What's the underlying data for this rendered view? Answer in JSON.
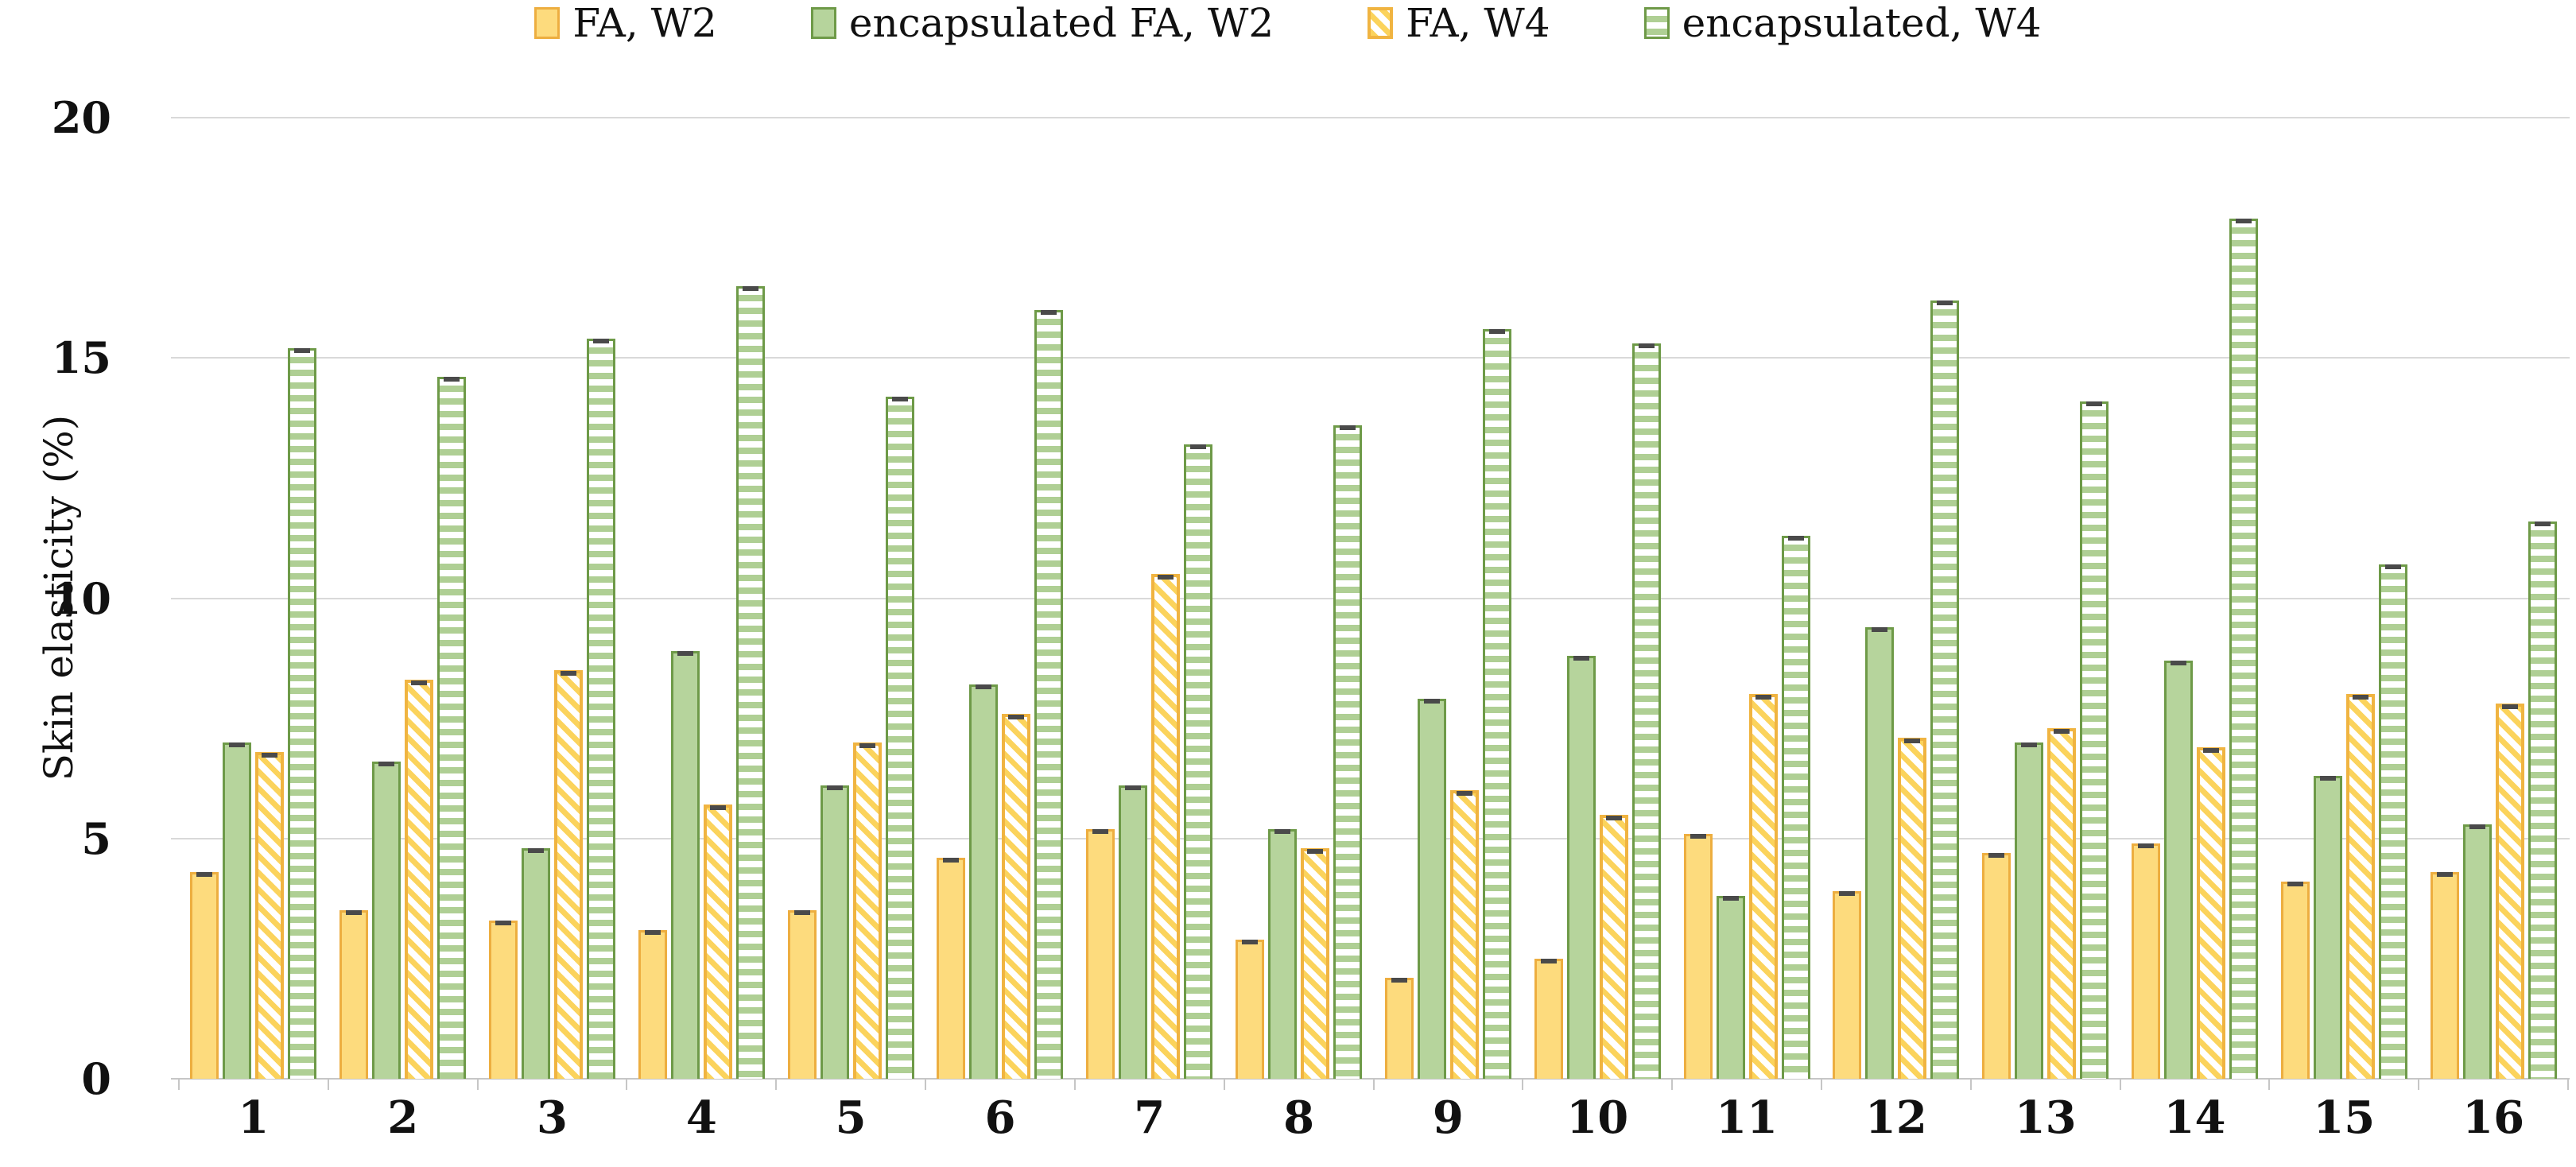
{
  "figure": {
    "ylabel": "Skin elasticity (%)",
    "colors": {
      "solid_yellow_fill": "#FDDB7D",
      "solid_yellow_border": "#EDAE40",
      "solid_green_fill": "#B6D49C",
      "solid_green_border": "#6E9A48",
      "hatch_yellow_stripe": "#FBD35C",
      "hatch_yellow_border": "#F0B441",
      "hatch_green_stripe": "#AFCF94",
      "hatch_green_border": "#6E9A48",
      "error_cap": "#4A4A4A",
      "gridline": "#D9D9D9"
    }
  },
  "chart_data": {
    "type": "bar",
    "title": "",
    "xlabel": "",
    "ylabel": "Skin elasticity (%)",
    "ylim": [
      0,
      20
    ],
    "yticks": [
      "0",
      "5",
      "10",
      "15",
      "20"
    ],
    "grid": true,
    "legend_position": "top",
    "error_caps": true,
    "categories": [
      "1",
      "2",
      "3",
      "4",
      "5",
      "6",
      "7",
      "8",
      "9",
      "10",
      "11",
      "12",
      "13",
      "14",
      "15",
      "16"
    ],
    "series": [
      {
        "name": "FA, W2",
        "style": "solid-yellow",
        "values": [
          4.3,
          3.5,
          3.3,
          3.1,
          3.5,
          4.6,
          5.2,
          2.9,
          2.1,
          2.5,
          5.1,
          3.9,
          4.7,
          4.9,
          4.1,
          4.3
        ]
      },
      {
        "name": "encapsulated FA, W2",
        "style": "solid-green",
        "values": [
          7.0,
          6.6,
          4.8,
          8.9,
          6.1,
          8.2,
          6.1,
          5.2,
          7.9,
          8.8,
          3.8,
          9.4,
          7.0,
          8.7,
          6.3,
          5.3
        ]
      },
      {
        "name": "FA, W4",
        "style": "hatch-yellow",
        "values": [
          6.8,
          8.3,
          8.5,
          5.7,
          7.0,
          7.6,
          10.5,
          4.8,
          6.0,
          5.5,
          8.0,
          7.1,
          7.3,
          6.9,
          8.0,
          7.8
        ]
      },
      {
        "name": "encapsulated, W4",
        "style": "hatch-green",
        "values": [
          15.2,
          14.6,
          15.4,
          16.5,
          14.2,
          16.0,
          13.2,
          13.6,
          15.6,
          15.3,
          11.3,
          16.2,
          14.1,
          17.9,
          10.7,
          11.6
        ]
      }
    ]
  }
}
